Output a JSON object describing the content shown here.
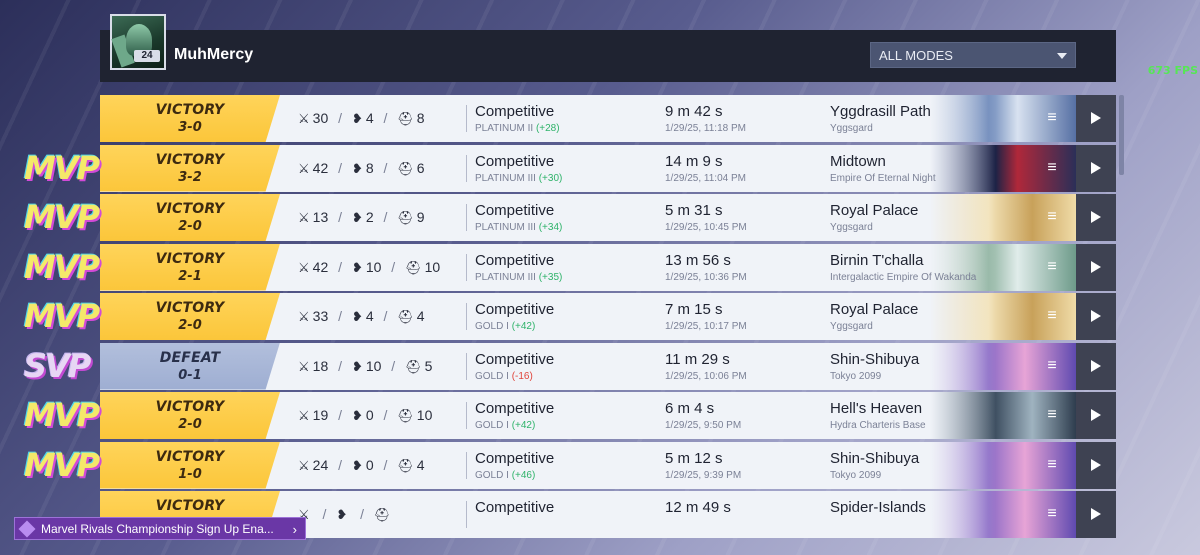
{
  "profile": {
    "username": "MuhMercy",
    "level": "24"
  },
  "mode_filter": {
    "selected": "ALL MODES"
  },
  "fps": "673 FPS",
  "banner": {
    "text": "Marvel Rivals Championship Sign Up Ena...",
    "chevron": "›"
  },
  "colors": {
    "victory": "#fbc63a",
    "defeat": "#9eaed2",
    "rank_gain": "#2fb36a",
    "rank_loss": "#e0453c",
    "header_bg": "#1f2331",
    "banner_bg": "#6a37a6"
  },
  "icons": {
    "kills": "crossed-swords-icon",
    "deaths": "broken-heart-icon",
    "assists": "helmet-icon",
    "menu": "menu-icon",
    "play": "play-icon"
  },
  "matches": [
    {
      "badge": "",
      "result": "VICTORY",
      "score": "3-0",
      "outcome": "victory",
      "kills": "30",
      "deaths": "4",
      "assists": "8",
      "mode": "Competitive",
      "rank": "PLATINUM II",
      "rank_change": "(+28)",
      "change_dir": "pos",
      "duration": "9 m 42 s",
      "datetime": "1/29/25, 11:18 PM",
      "map": "Yggdrasill Path",
      "region": "Yggsgard",
      "thumb": "tree"
    },
    {
      "badge": "MVP",
      "result": "VICTORY",
      "score": "3-2",
      "outcome": "victory",
      "kills": "42",
      "deaths": "8",
      "assists": "6",
      "mode": "Competitive",
      "rank": "PLATINUM III",
      "rank_change": "(+30)",
      "change_dir": "pos",
      "duration": "14 m 9 s",
      "datetime": "1/29/25, 11:04 PM",
      "map": "Midtown",
      "region": "Empire Of Eternal Night",
      "thumb": "night"
    },
    {
      "badge": "MVP",
      "result": "VICTORY",
      "score": "2-0",
      "outcome": "victory",
      "kills": "13",
      "deaths": "2",
      "assists": "9",
      "mode": "Competitive",
      "rank": "PLATINUM III",
      "rank_change": "(+34)",
      "change_dir": "pos",
      "duration": "5 m 31 s",
      "datetime": "1/29/25, 10:45 PM",
      "map": "Royal Palace",
      "region": "Yggsgard",
      "thumb": "gold"
    },
    {
      "badge": "MVP",
      "result": "VICTORY",
      "score": "2-1",
      "outcome": "victory",
      "kills": "42",
      "deaths": "10",
      "assists": "10",
      "mode": "Competitive",
      "rank": "PLATINUM III",
      "rank_change": "(+35)",
      "change_dir": "pos",
      "duration": "13 m 56 s",
      "datetime": "1/29/25, 10:36 PM",
      "map": "Birnin T'challa",
      "region": "Intergalactic Empire Of Wakanda",
      "thumb": "jungle"
    },
    {
      "badge": "MVP",
      "result": "VICTORY",
      "score": "2-0",
      "outcome": "victory",
      "kills": "33",
      "deaths": "4",
      "assists": "4",
      "mode": "Competitive",
      "rank": "GOLD I",
      "rank_change": "(+42)",
      "change_dir": "pos",
      "duration": "7 m 15 s",
      "datetime": "1/29/25, 10:17 PM",
      "map": "Royal Palace",
      "region": "Yggsgard",
      "thumb": "gold"
    },
    {
      "badge": "SVP",
      "result": "DEFEAT",
      "score": "0-1",
      "outcome": "defeat",
      "kills": "18",
      "deaths": "10",
      "assists": "5",
      "mode": "Competitive",
      "rank": "GOLD I",
      "rank_change": "(-16)",
      "change_dir": "neg",
      "duration": "11 m 29 s",
      "datetime": "1/29/25, 10:06 PM",
      "map": "Shin-Shibuya",
      "region": "Tokyo 2099",
      "thumb": "city"
    },
    {
      "badge": "MVP",
      "result": "VICTORY",
      "score": "2-0",
      "outcome": "victory",
      "kills": "19",
      "deaths": "0",
      "assists": "10",
      "mode": "Competitive",
      "rank": "GOLD I",
      "rank_change": "(+42)",
      "change_dir": "pos",
      "duration": "6 m 4 s",
      "datetime": "1/29/25, 9:50 PM",
      "map": "Hell's Heaven",
      "region": "Hydra Charteris Base",
      "thumb": "base"
    },
    {
      "badge": "MVP",
      "result": "VICTORY",
      "score": "1-0",
      "outcome": "victory",
      "kills": "24",
      "deaths": "0",
      "assists": "4",
      "mode": "Competitive",
      "rank": "GOLD I",
      "rank_change": "(+46)",
      "change_dir": "pos",
      "duration": "5 m 12 s",
      "datetime": "1/29/25, 9:39 PM",
      "map": "Shin-Shibuya",
      "region": "Tokyo 2099",
      "thumb": "city"
    },
    {
      "badge": "",
      "result": "VICTORY",
      "score": "",
      "outcome": "victory",
      "kills": "",
      "deaths": "",
      "assists": "",
      "mode": "Competitive",
      "rank": "",
      "rank_change": "",
      "change_dir": "pos",
      "duration": "12 m 49 s",
      "datetime": "",
      "map": "Spider-Islands",
      "region": "",
      "thumb": "city"
    }
  ]
}
